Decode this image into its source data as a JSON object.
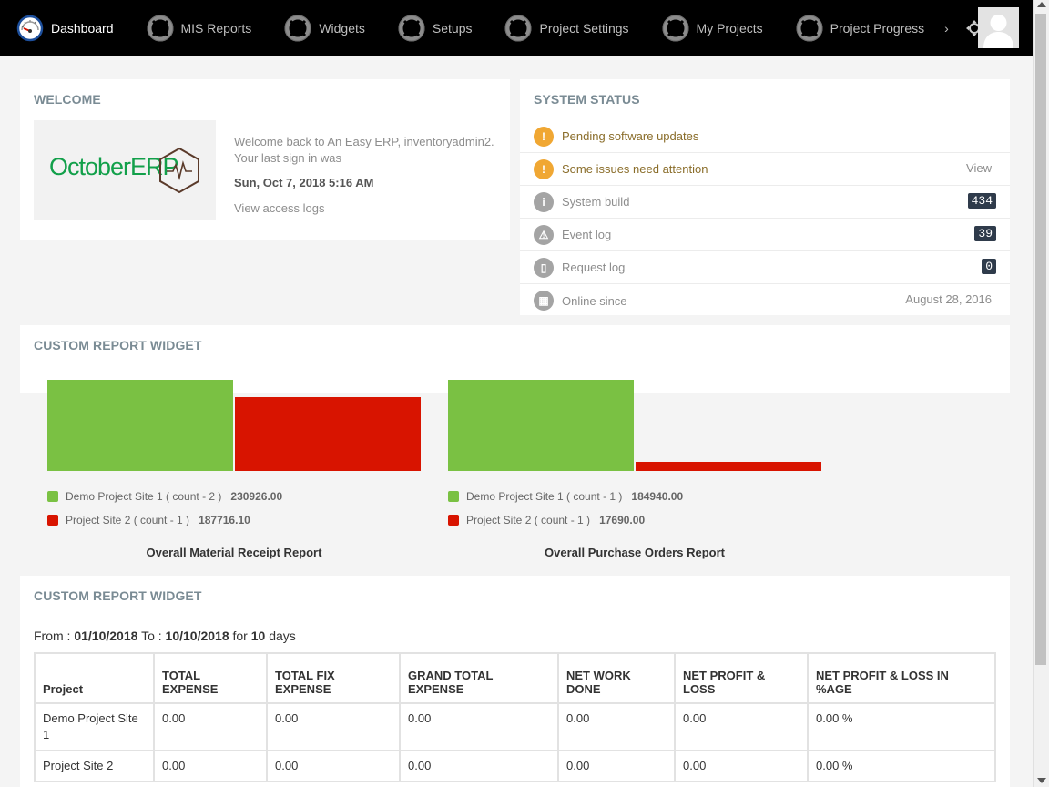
{
  "nav": {
    "items": [
      {
        "label": "Dashboard",
        "icon": "speedometer-icon",
        "active": true
      },
      {
        "label": "MIS Reports",
        "icon": "lifebuoy-icon"
      },
      {
        "label": "Widgets",
        "icon": "lifebuoy-icon"
      },
      {
        "label": "Setups",
        "icon": "lifebuoy-icon"
      },
      {
        "label": "Project Settings",
        "icon": "lifebuoy-icon"
      },
      {
        "label": "My Projects",
        "icon": "lifebuoy-icon"
      },
      {
        "label": "Project Progress",
        "icon": "lifebuoy-icon"
      }
    ],
    "more": "›",
    "move_icon": "move-icon"
  },
  "welcome": {
    "title": "Welcome",
    "logo_text": "OctoberERP",
    "message": "Welcome back to An Easy ERP, inventoryadmin2. Your last sign in was",
    "last_sign_in": "Sun, Oct 7, 2018 5:16 AM",
    "access_logs_link": "View access logs"
  },
  "system_status": {
    "title": "System Status",
    "rows": [
      {
        "label": "Pending software updates",
        "icon": "!",
        "type": "warn"
      },
      {
        "label": "Some issues need attention",
        "icon": "!",
        "type": "warn",
        "right": "View"
      },
      {
        "label": "System build",
        "icon": "i",
        "type": "gray",
        "badge": "434"
      },
      {
        "label": "Event log",
        "icon": "⚠",
        "type": "gray",
        "badge": "39"
      },
      {
        "label": "Request log",
        "icon": "▯",
        "type": "gray",
        "badge": "0"
      },
      {
        "label": "Online since",
        "icon": "▦",
        "type": "gray",
        "right": "August 28, 2016"
      }
    ]
  },
  "chart_widget": {
    "title": "Custom Report Widget"
  },
  "chart_data": [
    {
      "type": "bar",
      "title": "Overall Material Receipt Report",
      "categories": [
        "Demo Project Site 1 ( count - 2 )",
        "Project Site 2 ( count - 1 )"
      ],
      "values": [
        230926.0,
        187716.1
      ],
      "value_labels": [
        "230926.00",
        "187716.10"
      ],
      "colors": [
        "#7ac143",
        "#d81400"
      ]
    },
    {
      "type": "bar",
      "title": "Overall Purchase Orders Report",
      "categories": [
        "Demo Project Site 1 ( count - 1 )",
        "Project Site 2 ( count - 1 )"
      ],
      "values": [
        184940.0,
        17690.0
      ],
      "value_labels": [
        "184940.00",
        "17690.00"
      ],
      "colors": [
        "#7ac143",
        "#d81400"
      ]
    }
  ],
  "table_widget": {
    "title": "Custom Report Widget",
    "from_label": "From :",
    "from_date": "01/10/2018",
    "to_label": "To :",
    "to_date": "10/10/2018",
    "for_label": "for",
    "days_count": "10",
    "days_label": "days",
    "headers": [
      "Project",
      "TOTAL EXPENSE",
      "TOTAL FIX EXPENSE",
      "GRAND TOTAL EXPENSE",
      "NET WORK DONE",
      "NET PROFIT & LOSS",
      "NET PROFIT & LOSS IN %AGE"
    ],
    "rows": [
      [
        "Demo Project Site 1",
        "0.00",
        "0.00",
        "0.00",
        "0.00",
        "0.00",
        "0.00 %"
      ],
      [
        "Project Site 2",
        "0.00",
        "0.00",
        "0.00",
        "0.00",
        "0.00",
        "0.00 %"
      ]
    ]
  }
}
